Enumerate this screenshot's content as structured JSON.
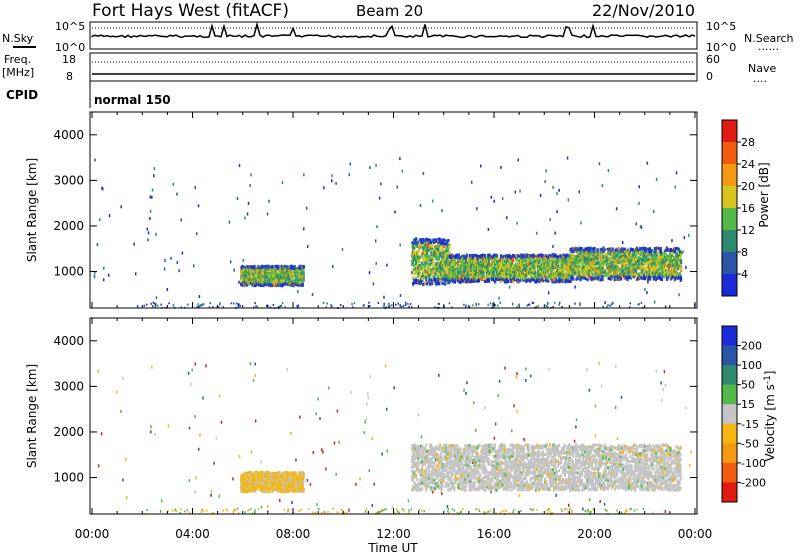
{
  "header": {
    "station": "Fort Hays West (fitACF)",
    "beam": "Beam 20",
    "date": "22/Nov/2010"
  },
  "noise_panel": {
    "left_label": "N.Sky",
    "right_label": "N.Search",
    "right_label_marker": "......",
    "tick_top": "10^5",
    "tick_bottom": "10^0"
  },
  "freq_panel": {
    "left_label_line1": "Freq.",
    "left_label_line2": "[MHz]",
    "left_tick_top": "18",
    "left_tick_bottom": "8",
    "right_label": "Nave",
    "right_label_marker": "....",
    "right_tick_top": "60",
    "right_tick_bottom": "0"
  },
  "cpid_panel": {
    "left_label": "CPID",
    "mode": "normal 150"
  },
  "chart_data": [
    {
      "type": "heatmap",
      "name": "power-panel",
      "ylabel": "Slant Range [km]",
      "ylim": [
        200,
        4500
      ],
      "xlim_hours": [
        0,
        24
      ],
      "y_ticks": [
        1000,
        2000,
        3000,
        4000
      ],
      "colorbar": {
        "label": "Power [dB]",
        "range": [
          0,
          32
        ],
        "ticks": [
          "4",
          "8",
          "12",
          "16",
          "20",
          "24",
          "28"
        ],
        "colors": [
          "#1c2bd8",
          "#2956a8",
          "#2e8a6e",
          "#52b84a",
          "#d6c51c",
          "#f39a12",
          "#f25a0f",
          "#e01b10"
        ]
      },
      "regions": [
        {
          "t0": 5.9,
          "t1": 8.4,
          "r0": 720,
          "r1": 1150,
          "level": 0.55
        },
        {
          "t0": 12.7,
          "t1": 14.2,
          "r0": 750,
          "r1": 1750,
          "level": 0.6
        },
        {
          "t0": 14.2,
          "t1": 19.0,
          "r0": 800,
          "r1": 1400,
          "level": 0.6
        },
        {
          "t0": 19.0,
          "t1": 23.4,
          "r0": 850,
          "r1": 1550,
          "level": 0.55
        }
      ]
    },
    {
      "type": "heatmap",
      "name": "velocity-panel",
      "ylabel": "Slant Range [km]",
      "ylim": [
        200,
        4500
      ],
      "xlim_hours": [
        0,
        24
      ],
      "y_ticks": [
        1000,
        2000,
        3000,
        4000
      ],
      "colorbar": {
        "label": "Velocity [m s^-1]",
        "ticks": [
          "200",
          "100",
          "50",
          "15",
          "-15",
          "-50",
          "-100",
          "-200"
        ],
        "colors": [
          "#1c2bd8",
          "#2956a8",
          "#2e8a6e",
          "#52b84a",
          "#c4c4c4",
          "#f3b712",
          "#f39a12",
          "#f25a0f",
          "#e01b10"
        ]
      },
      "regions": [
        {
          "t0": 5.9,
          "t1": 8.4,
          "r0": 720,
          "r1": 1150,
          "class": "negative"
        },
        {
          "t0": 12.7,
          "t1": 23.4,
          "r0": 750,
          "r1": 1750,
          "class": "ground"
        }
      ]
    }
  ],
  "x_axis": {
    "label": "Time UT",
    "ticks": [
      "00:00",
      "04:00",
      "08:00",
      "12:00",
      "16:00",
      "20:00",
      "00:00"
    ],
    "tick_hours": [
      0,
      4,
      8,
      12,
      16,
      20,
      24
    ]
  }
}
